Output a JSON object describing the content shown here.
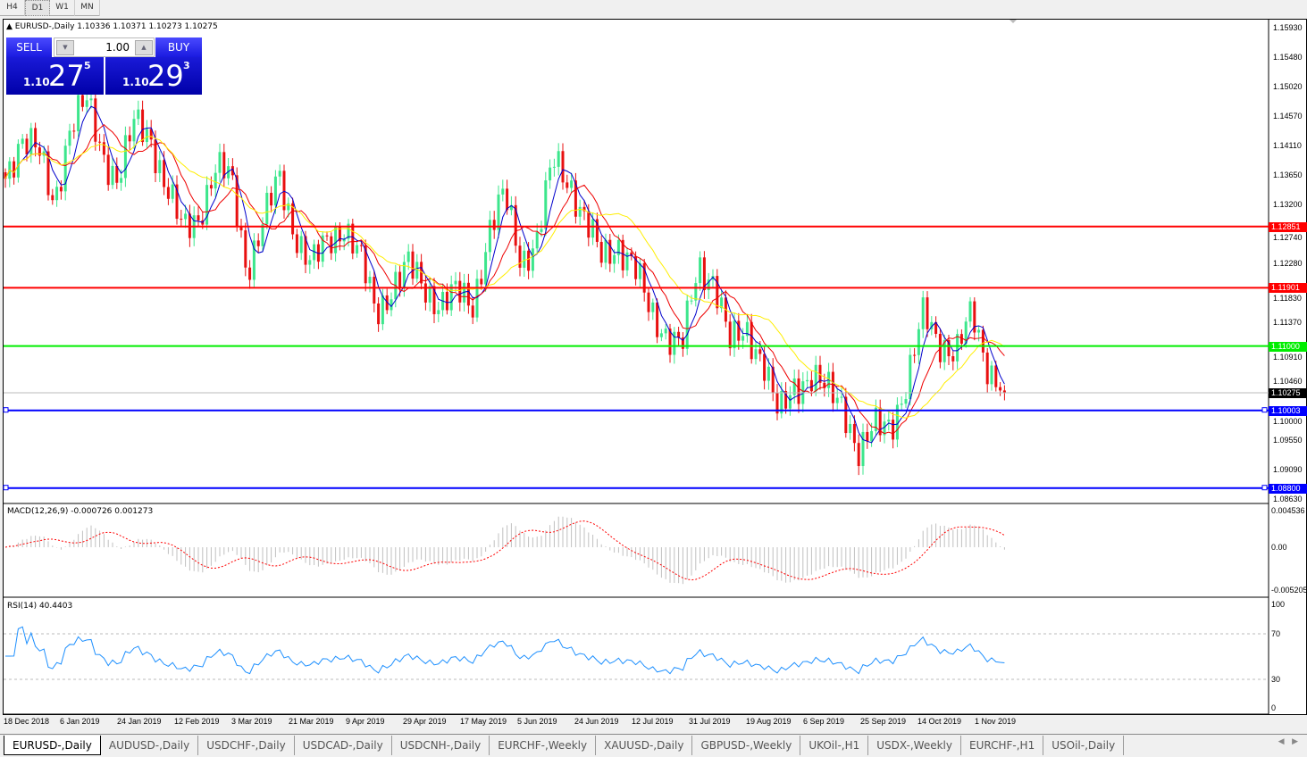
{
  "timeframes": [
    "H4",
    "D1",
    "W1",
    "MN"
  ],
  "active_timeframe": "D1",
  "chart": {
    "symbol_info": "EURUSD-,Daily  1.10336 1.10371 1.10273 1.10275"
  },
  "trade_panel": {
    "sell_label": "SELL",
    "buy_label": "BUY",
    "lot": "1.00",
    "sell_price": {
      "small": "1.10",
      "big": "27",
      "sup": "5"
    },
    "buy_price": {
      "small": "1.10",
      "big": "29",
      "sup": "3"
    }
  },
  "price_axis": [
    "1.15930",
    "1.15480",
    "1.15020",
    "1.14570",
    "1.14110",
    "1.13650",
    "1.13200",
    "1.12740",
    "1.12280",
    "1.11830",
    "1.11370",
    "1.10910",
    "1.10460",
    "1.10000",
    "1.09550",
    "1.09090",
    "1.08630"
  ],
  "levels": [
    {
      "price": 1.12851,
      "label": "1.12851",
      "color": "#ff0000"
    },
    {
      "price": 1.11901,
      "label": "1.11901",
      "color": "#ff0000"
    },
    {
      "price": 1.11,
      "label": "1.11000",
      "color": "#00ee00"
    },
    {
      "price": 1.10003,
      "label": "1.10003",
      "color": "#0000ff"
    },
    {
      "price": 1.088,
      "label": "1.08800",
      "color": "#0000ff"
    }
  ],
  "current_price": {
    "price": 1.10275,
    "label": "1.10275"
  },
  "chart_data": {
    "type": "candlestick",
    "symbol": "EURUSD",
    "timeframe": "Daily",
    "approx_close_path": [
      1.1359,
      1.1428,
      1.1401,
      1.1318,
      1.1442,
      1.1477,
      1.1401,
      1.1359,
      1.1442,
      1.1428,
      1.1345,
      1.1276,
      1.1304,
      1.1373,
      1.1359,
      1.1221,
      1.129,
      1.1359,
      1.1276,
      1.1221,
      1.1262,
      1.129,
      1.1235,
      1.1152,
      1.1193,
      1.1221,
      1.1193,
      1.1166,
      1.1179,
      1.1166,
      1.1276,
      1.1332,
      1.1235,
      1.1262,
      1.1387,
      1.1359,
      1.129,
      1.1235,
      1.1262,
      1.1221,
      1.1152,
      1.1124,
      1.1097,
      1.1221,
      1.1207,
      1.1097,
      1.1124,
      1.1083,
      1.0986,
      1.1041,
      1.1055,
      1.1027,
      1.1013,
      1.0931,
      1.0972,
      1.0986,
      1.1041,
      1.1152,
      1.111,
      1.1083,
      1.1152,
      1.1069,
      1.1027
    ],
    "ylim": [
      1.0863,
      1.1593
    ],
    "x_tick_labels": [
      "18 Dec 2018",
      "6 Jan 2019",
      "24 Jan 2019",
      "12 Feb 2019",
      "3 Mar 2019",
      "21 Mar 2019",
      "9 Apr 2019",
      "29 Apr 2019",
      "17 May 2019",
      "5 Jun 2019",
      "24 Jun 2019",
      "12 Jul 2019",
      "31 Jul 2019",
      "19 Aug 2019",
      "6 Sep 2019",
      "25 Sep 2019",
      "14 Oct 2019",
      "1 Nov 2019"
    ],
    "colors": {
      "bull": "#3ce68c",
      "bear": "#e81010",
      "ma_fast": "#0000cc",
      "ma_mid": "#ee0000",
      "ma_slow": "#ffee00"
    }
  },
  "macd": {
    "label": "MACD(12,26,9) -0.000726 0.001273",
    "axis": [
      "0.004536",
      "0.00",
      "-0.005205"
    ]
  },
  "rsi": {
    "label": "RSI(14) 40.4403",
    "axis": [
      "100",
      "70",
      "30",
      "0"
    ],
    "color": "#1e90ff"
  },
  "tabs": [
    "EURUSD-,Daily",
    "AUDUSD-,Daily",
    "USDCHF-,Daily",
    "USDCAD-,Daily",
    "USDCNH-,Daily",
    "EURCHF-,Weekly",
    "XAUUSD-,Daily",
    "GBPUSD-,Weekly",
    "UKOil-,H1",
    "USDX-,Weekly",
    "EURCHF-,H1",
    "USOil-,Daily"
  ],
  "active_tab": "EURUSD-,Daily"
}
